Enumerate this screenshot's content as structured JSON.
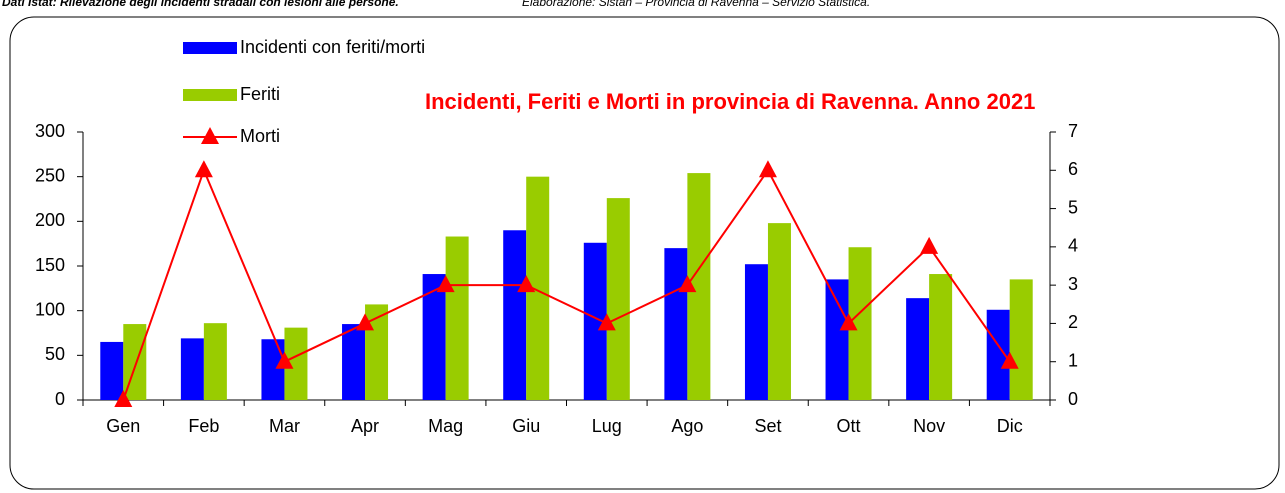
{
  "chart_data": {
    "type": "bar_line",
    "source_bold": "Dati Istat: Rilevazione degli incidenti stradali con lesioni alle persone.",
    "source": "Elaborazione: Sistan – Provincia di Ravenna – Servizio Statistica.",
    "title": "Incidenti, Feriti e Morti in provincia di Ravenna. Anno 2021",
    "categories": [
      "Gen",
      "Feb",
      "Mar",
      "Apr",
      "Mag",
      "Giu",
      "Lug",
      "Ago",
      "Set",
      "Ott",
      "Nov",
      "Dic"
    ],
    "series": [
      {
        "name": "Incidenti con feriti/morti",
        "type": "bar",
        "color": "#0000ff",
        "values": [
          65,
          69,
          68,
          85,
          141,
          190,
          176,
          170,
          152,
          135,
          114,
          101
        ]
      },
      {
        "name": "Feriti",
        "type": "bar",
        "color": "#99cc00",
        "values": [
          85,
          86,
          81,
          107,
          183,
          250,
          226,
          254,
          198,
          171,
          141,
          135
        ]
      },
      {
        "name": "Morti",
        "type": "line",
        "axis": "y2",
        "color": "#ff0000",
        "values": [
          0,
          6,
          1,
          2,
          3,
          3,
          2,
          3,
          6,
          2,
          4,
          1
        ]
      }
    ],
    "ylim": [
      0,
      300
    ],
    "yticks": [
      0,
      50,
      100,
      150,
      200,
      250,
      300
    ],
    "y2lim": [
      0,
      7
    ],
    "y2ticks": [
      0,
      1,
      2,
      3,
      4,
      5,
      6,
      7
    ],
    "grid": false,
    "legend": "top-left"
  }
}
